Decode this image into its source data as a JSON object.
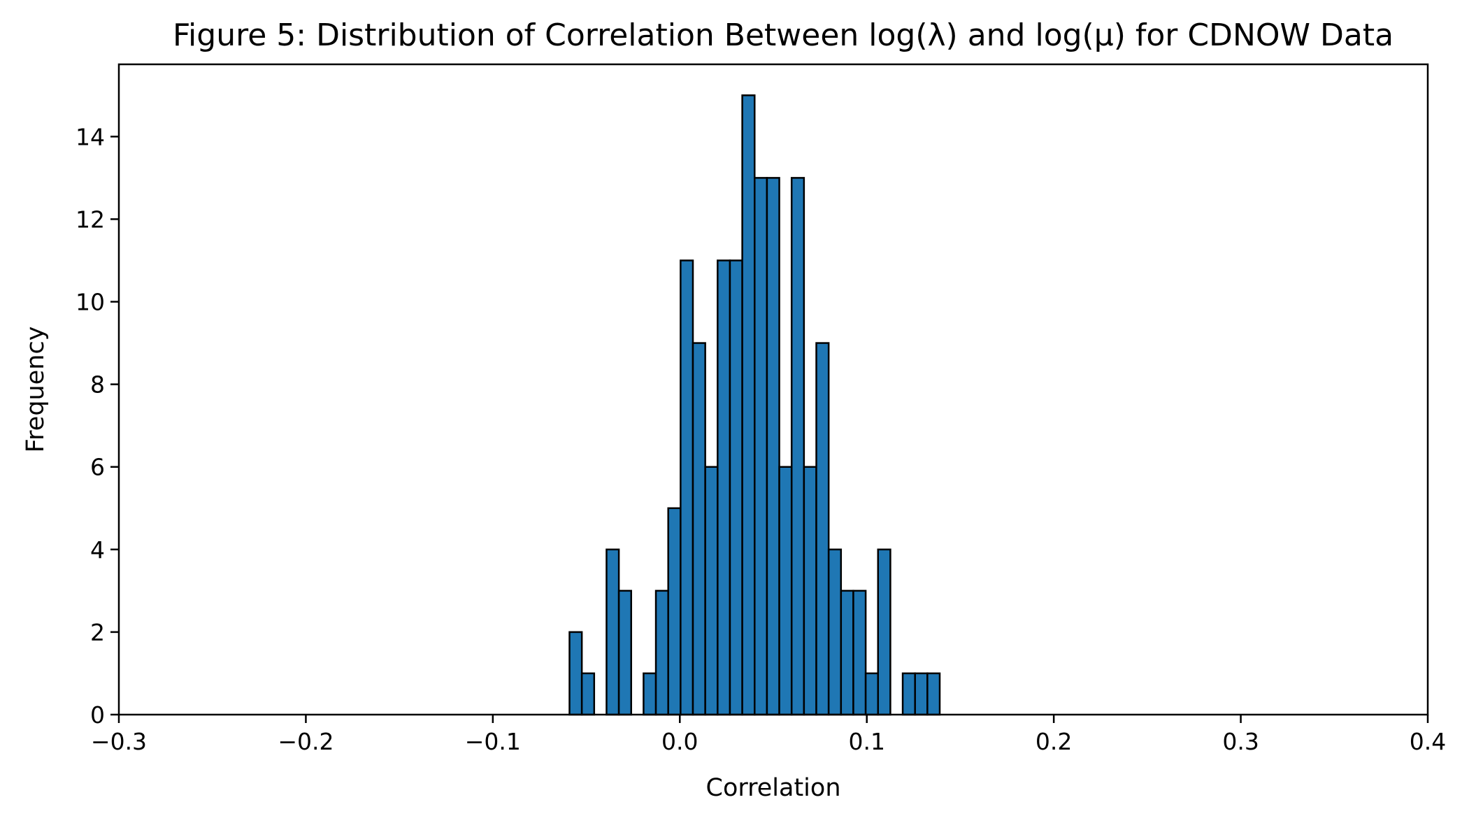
{
  "chart_data": {
    "type": "bar",
    "title": "Figure 5: Distribution of Correlation Between log(λ) and log(μ) for CDNOW Data",
    "xlabel": "Correlation",
    "ylabel": "Frequency",
    "xlim": [
      -0.3,
      0.4
    ],
    "ylim": [
      0,
      15.75
    ],
    "grid": false,
    "bar_color": "#1f77b4",
    "edge_color": "#000000",
    "bin_width": 0.0066,
    "bins": [
      {
        "x0": -0.059,
        "count": 2
      },
      {
        "x0": -0.0524,
        "count": 1
      },
      {
        "x0": -0.0392,
        "count": 4
      },
      {
        "x0": -0.0326,
        "count": 3
      },
      {
        "x0": -0.0194,
        "count": 1
      },
      {
        "x0": -0.0128,
        "count": 3
      },
      {
        "x0": -0.0062,
        "count": 5
      },
      {
        "x0": 0.0004,
        "count": 11
      },
      {
        "x0": 0.007,
        "count": 9
      },
      {
        "x0": 0.0136,
        "count": 6
      },
      {
        "x0": 0.0202,
        "count": 11
      },
      {
        "x0": 0.0268,
        "count": 11
      },
      {
        "x0": 0.0334,
        "count": 15
      },
      {
        "x0": 0.04,
        "count": 13
      },
      {
        "x0": 0.0466,
        "count": 13
      },
      {
        "x0": 0.0532,
        "count": 6
      },
      {
        "x0": 0.0598,
        "count": 13
      },
      {
        "x0": 0.0664,
        "count": 6
      },
      {
        "x0": 0.073,
        "count": 9
      },
      {
        "x0": 0.0796,
        "count": 4
      },
      {
        "x0": 0.0862,
        "count": 3
      },
      {
        "x0": 0.0928,
        "count": 3
      },
      {
        "x0": 0.0994,
        "count": 1
      },
      {
        "x0": 0.106,
        "count": 4
      },
      {
        "x0": 0.1192,
        "count": 1
      },
      {
        "x0": 0.1258,
        "count": 1
      },
      {
        "x0": 0.1324,
        "count": 1
      }
    ],
    "x_ticks": [
      {
        "value": -0.3,
        "label": "−0.3"
      },
      {
        "value": -0.2,
        "label": "−0.2"
      },
      {
        "value": -0.1,
        "label": "−0.1"
      },
      {
        "value": 0.0,
        "label": "0.0"
      },
      {
        "value": 0.1,
        "label": "0.1"
      },
      {
        "value": 0.2,
        "label": "0.2"
      },
      {
        "value": 0.3,
        "label": "0.3"
      },
      {
        "value": 0.4,
        "label": "0.4"
      }
    ],
    "y_ticks": [
      {
        "value": 0,
        "label": "0"
      },
      {
        "value": 2,
        "label": "2"
      },
      {
        "value": 4,
        "label": "4"
      },
      {
        "value": 6,
        "label": "6"
      },
      {
        "value": 8,
        "label": "8"
      },
      {
        "value": 10,
        "label": "10"
      },
      {
        "value": 12,
        "label": "12"
      },
      {
        "value": 14,
        "label": "14"
      }
    ]
  }
}
